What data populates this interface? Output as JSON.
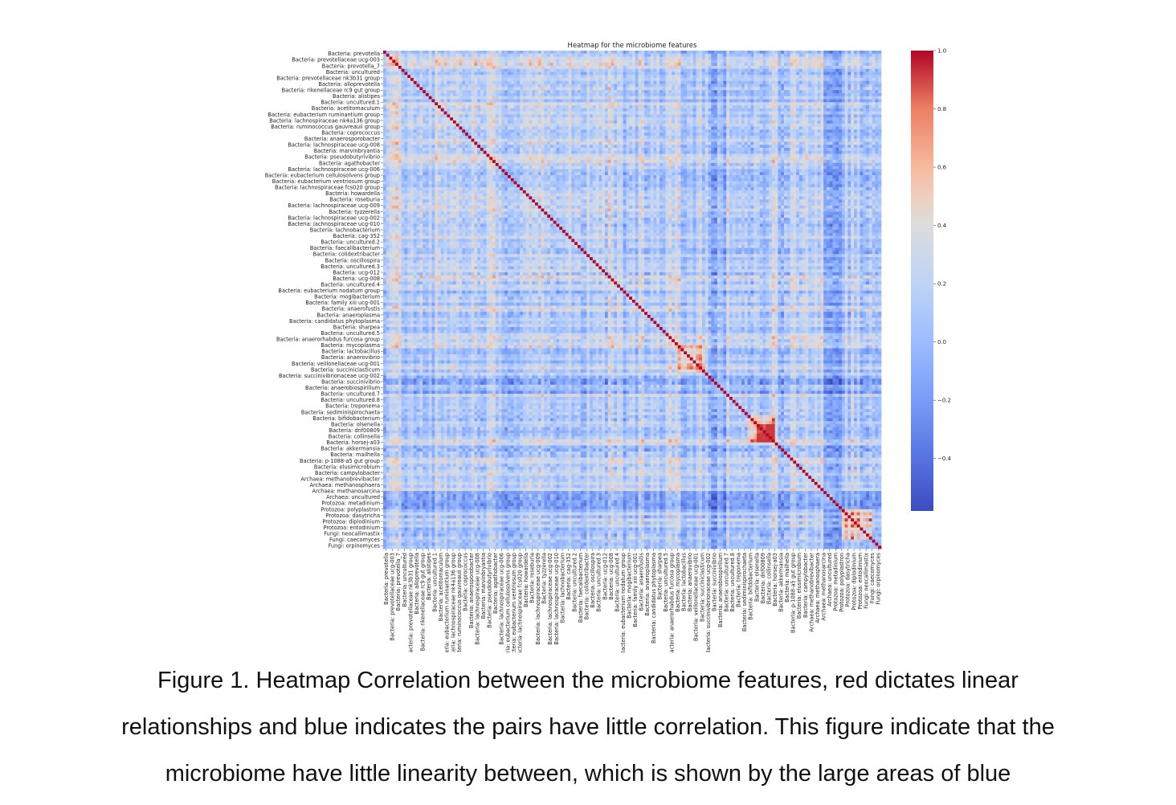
{
  "chart_data": {
    "type": "heatmap",
    "title": "Heatmap for the microbiome features",
    "labels": [
      "Bacteria: prevotella",
      "Bacteria: prevotellaceae ucg-003",
      "Bacteria: prevotella_7",
      "Bacteria: uncultured",
      "Bacteria: prevotellaceae nk3b31 group",
      "Bacteria: alloprevotella",
      "Bacteria: rikenellaceae rc9 gut group",
      "Bacteria: alistipes",
      "Bacteria: uncultured.1",
      "Bacteria: acetitomaculum",
      "Bacteria: eubacterium ruminantium group",
      "Bacteria: lachnospiraceae nk4a136 group",
      "Bacteria: ruminococcus gauvreauii group",
      "Bacteria: coprococcus",
      "Bacteria: anaerosporobacter",
      "Bacteria: lachnospiraceae ucg-008",
      "Bacteria: marvinbryantia",
      "Bacteria: pseudobutyrivibrio",
      "Bacteria: agathobacter",
      "Bacteria: lachnospiraceae ucg-006",
      "Bacteria: eubacterium cellulosolvens group",
      "Bacteria: eubacterium ventriosum group",
      "Bacteria: lachnospiraceae fcs020 group",
      "Bacteria: howardella",
      "Bacteria: roseburia",
      "Bacteria: lachnospiraceae ucg-009",
      "Bacteria: tyzzerella",
      "Bacteria: lachnospiraceae ucg-002",
      "Bacteria: lachnospiraceae ucg-010",
      "Bacteria: lachnobacterium",
      "Bacteria: cag-352",
      "Bacteria: uncultured.2",
      "Bacteria: faecalibacterium",
      "Bacteria: colidextribacter",
      "Bacteria: oscillospira",
      "Bacteria: uncultured.3",
      "Bacteria: ucg-012",
      "Bacteria: ucg-008",
      "Bacteria: uncultured.4",
      "Bacteria: eubacterium nodatum group",
      "Bacteria: mogibacterium",
      "Bacteria: family xiii ucg-001",
      "Bacteria: anaerofustis",
      "Bacteria: anaeroplasma",
      "Bacteria: candidatus phytoplasma",
      "Bacteria: sharpea",
      "Bacteria: uncultured.5",
      "Bacteria: anaerorhabdus furcosa group",
      "Bacteria: mycoplasma",
      "Bacteria: lactobacillus",
      "Bacteria: anaerovibrio",
      "Bacteria: veillonellaceae ucg-001",
      "Bacteria: succiniclasticum",
      "Bacteria: succinivibrionaceae ucg-002",
      "Bacteria: succinivibrio",
      "Bacteria: anaerobiospirillum",
      "Bacteria: uncultured.7",
      "Bacteria: uncultured.8",
      "Bacteria: treponema",
      "Bacteria: sediminispirochaeta",
      "Bacteria: bifidobacterium",
      "Bacteria: olsenella",
      "Bacteria: dnf00809",
      "Bacteria: collinsella",
      "Bacteria: horsej-a03",
      "Bacteria: akkermansia",
      "Bacteria: mailhella",
      "Bacteria: p-1088-a5 gut group",
      "Bacteria: elusimicrobium",
      "Bacteria: campylobacter",
      "Archaea: methanobrevibacter",
      "Archaea: methanosphaera",
      "Archaea: methanosarcina",
      "Archaea: uncultured",
      "Protozoa: metadinium",
      "Protozoa: polyplastron",
      "Protozoa: dasytricha",
      "Protozoa: diplodinium",
      "Protozoa: entodinium",
      "Fungi: neocallimastix",
      "Fungi: caecomyces",
      "Fungi: orpinomyces"
    ],
    "n_cells": 164,
    "vmin": -0.58,
    "vmax": 1.0,
    "diagonal_value": 1.0,
    "colormap": "coolwarm",
    "colorbar_ticks": [
      1.0,
      0.8,
      0.6,
      0.4,
      0.2,
      0.0,
      -0.2,
      -0.4
    ],
    "colorbar_tick_labels": [
      "1.0",
      "0.8",
      "0.6",
      "0.4",
      "0.2",
      "0.0",
      "−0.2",
      "−0.4"
    ]
  },
  "caption": {
    "line1": "Figure 1. Heatmap Correlation between the microbiome features, red dictates linear",
    "line2": "relationships and blue indicates the pairs have little correlation. This figure indicate that the",
    "line3": "microbiome have little linearity between, which is shown by the large areas of blue"
  }
}
